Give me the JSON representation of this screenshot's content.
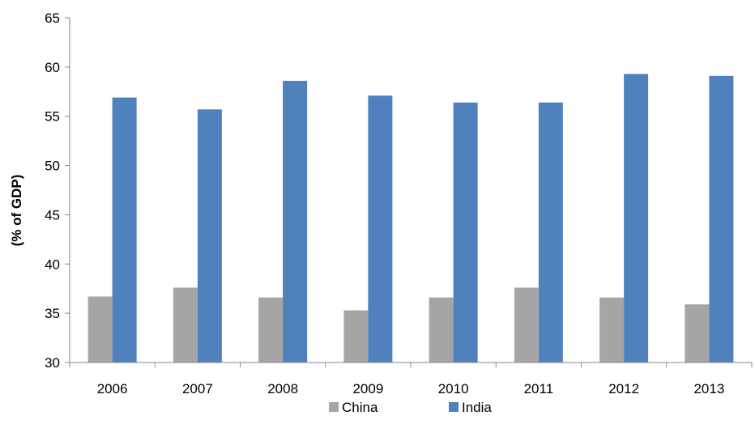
{
  "chart_data": {
    "type": "bar",
    "title": "",
    "xlabel": "",
    "ylabel": "(% of GDP)",
    "categories": [
      "2006",
      "2007",
      "2008",
      "2009",
      "2010",
      "2011",
      "2012",
      "2013"
    ],
    "series": [
      {
        "name": "China",
        "color": "#a5a5a5",
        "values": [
          36.7,
          37.6,
          36.6,
          35.3,
          36.6,
          37.6,
          36.6,
          35.9
        ]
      },
      {
        "name": "India",
        "color": "#4f81bd",
        "values": [
          56.9,
          55.7,
          58.6,
          57.1,
          56.4,
          56.4,
          59.3,
          59.1
        ]
      }
    ],
    "ylim": [
      30,
      65
    ],
    "yticks": [
      "30",
      "35",
      "40",
      "45",
      "50",
      "55",
      "60",
      "65"
    ],
    "grid": false,
    "legend": "bottom-center"
  }
}
